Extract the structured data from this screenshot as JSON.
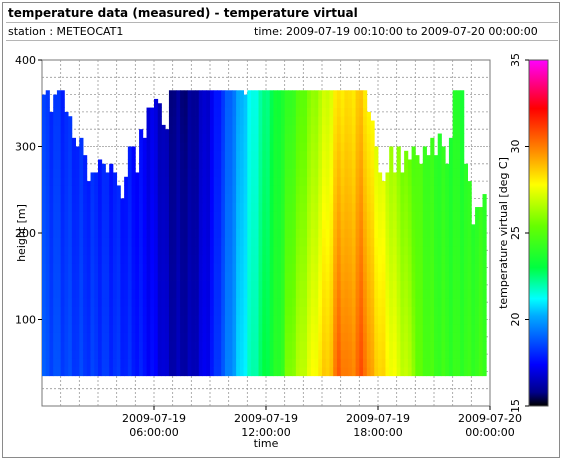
{
  "header": {
    "title": "temperature data (measured) - temperature virtual",
    "station": "station : METEOCAT1",
    "time_range": "time: 2009-07-19 00:10:00 to 2009-07-20 00:00:00"
  },
  "chart_data": {
    "type": "heatmap",
    "xlabel": "time",
    "ylabel": "height [m]",
    "colorbar_label": "temperature virtual [deg C]",
    "x_range_hours": [
      0,
      24
    ],
    "ylim": [
      0,
      400
    ],
    "colorbar_range": [
      15,
      35
    ],
    "y_ticks": [
      100,
      200,
      300,
      400
    ],
    "colorbar_ticks": [
      15,
      20,
      25,
      30,
      35
    ],
    "x_ticks": [
      {
        "hour": 6,
        "line1": "2009-07-19",
        "line2": "06:00:00"
      },
      {
        "hour": 12,
        "line1": "2009-07-19",
        "line2": "12:00:00"
      },
      {
        "hour": 18,
        "line1": "2009-07-19",
        "line2": "18:00:00"
      },
      {
        "hour": 24,
        "line1": "2009-07-20",
        "line2": "00:00:00"
      }
    ],
    "grid": true,
    "height_bottom_m": 35,
    "data_top_m": [
      [
        0.2,
        360
      ],
      [
        0.4,
        365
      ],
      [
        0.6,
        340
      ],
      [
        0.8,
        360
      ],
      [
        1.0,
        365
      ],
      [
        1.2,
        365
      ],
      [
        1.4,
        340
      ],
      [
        1.6,
        335
      ],
      [
        1.8,
        310
      ],
      [
        2.0,
        300
      ],
      [
        2.2,
        310
      ],
      [
        2.4,
        290
      ],
      [
        2.6,
        260
      ],
      [
        2.8,
        270
      ],
      [
        3.0,
        270
      ],
      [
        3.2,
        285
      ],
      [
        3.4,
        280
      ],
      [
        3.6,
        270
      ],
      [
        3.8,
        280
      ],
      [
        4.0,
        270
      ],
      [
        4.2,
        255
      ],
      [
        4.4,
        240
      ],
      [
        4.6,
        265
      ],
      [
        4.8,
        300
      ],
      [
        5.0,
        300
      ],
      [
        5.2,
        270
      ],
      [
        5.4,
        320
      ],
      [
        5.6,
        310
      ],
      [
        5.8,
        345
      ],
      [
        6.0,
        345
      ],
      [
        6.2,
        355
      ],
      [
        6.4,
        350
      ],
      [
        6.6,
        325
      ],
      [
        6.8,
        320
      ],
      [
        7.0,
        365
      ],
      [
        7.2,
        365
      ],
      [
        7.4,
        365
      ],
      [
        7.6,
        365
      ],
      [
        7.8,
        365
      ],
      [
        8.0,
        365
      ],
      [
        8.2,
        365
      ],
      [
        8.4,
        365
      ],
      [
        8.6,
        365
      ],
      [
        8.8,
        365
      ],
      [
        9.0,
        365
      ],
      [
        9.2,
        365
      ],
      [
        9.4,
        365
      ],
      [
        9.6,
        365
      ],
      [
        9.8,
        365
      ],
      [
        10.0,
        365
      ],
      [
        10.2,
        365
      ],
      [
        10.4,
        365
      ],
      [
        10.6,
        365
      ],
      [
        10.8,
        365
      ],
      [
        11.0,
        360
      ],
      [
        11.2,
        365
      ],
      [
        11.4,
        365
      ],
      [
        11.6,
        365
      ],
      [
        11.8,
        365
      ],
      [
        12.0,
        365
      ],
      [
        12.2,
        365
      ],
      [
        12.4,
        365
      ],
      [
        12.6,
        365
      ],
      [
        12.8,
        365
      ],
      [
        13.0,
        365
      ],
      [
        13.2,
        365
      ],
      [
        13.4,
        365
      ],
      [
        13.6,
        365
      ],
      [
        13.8,
        365
      ],
      [
        14.0,
        365
      ],
      [
        14.2,
        365
      ],
      [
        14.4,
        365
      ],
      [
        14.6,
        365
      ],
      [
        14.8,
        365
      ],
      [
        15.0,
        365
      ],
      [
        15.2,
        365
      ],
      [
        15.4,
        365
      ],
      [
        15.6,
        365
      ],
      [
        15.8,
        365
      ],
      [
        16.0,
        365
      ],
      [
        16.2,
        365
      ],
      [
        16.4,
        365
      ],
      [
        16.6,
        365
      ],
      [
        16.8,
        365
      ],
      [
        17.0,
        365
      ],
      [
        17.2,
        365
      ],
      [
        17.4,
        365
      ],
      [
        17.6,
        340
      ],
      [
        17.8,
        330
      ],
      [
        18.0,
        300
      ],
      [
        18.2,
        270
      ],
      [
        18.4,
        260
      ],
      [
        18.6,
        270
      ],
      [
        18.8,
        300
      ],
      [
        19.0,
        270
      ],
      [
        19.2,
        300
      ],
      [
        19.4,
        270
      ],
      [
        19.6,
        295
      ],
      [
        19.8,
        285
      ],
      [
        20.0,
        300
      ],
      [
        20.2,
        290
      ],
      [
        20.4,
        280
      ],
      [
        20.6,
        300
      ],
      [
        20.8,
        290
      ],
      [
        21.0,
        310
      ],
      [
        21.2,
        290
      ],
      [
        21.4,
        315
      ],
      [
        21.6,
        300
      ],
      [
        21.8,
        280
      ],
      [
        22.0,
        310
      ],
      [
        22.2,
        365
      ],
      [
        22.4,
        365
      ],
      [
        22.6,
        365
      ],
      [
        22.8,
        280
      ],
      [
        23.0,
        260
      ],
      [
        23.2,
        210
      ],
      [
        23.4,
        230
      ],
      [
        23.6,
        230
      ],
      [
        23.8,
        245
      ]
    ],
    "surface_temperature_by_hour": [
      [
        0,
        18.8
      ],
      [
        1,
        18.6
      ],
      [
        2,
        18.4
      ],
      [
        3,
        18.3
      ],
      [
        4,
        18.2
      ],
      [
        5,
        17.9
      ],
      [
        6,
        17.4
      ],
      [
        7,
        16.3
      ],
      [
        8,
        16.3
      ],
      [
        9,
        17.5
      ],
      [
        10,
        19.5
      ],
      [
        11,
        21.5
      ],
      [
        12,
        23.0
      ],
      [
        13,
        24.5
      ],
      [
        14,
        26.0
      ],
      [
        15,
        27.5
      ],
      [
        16,
        28.8
      ],
      [
        17,
        29.3
      ],
      [
        18,
        27.8
      ],
      [
        19,
        26.5
      ],
      [
        20,
        25.3
      ],
      [
        21,
        24.5
      ],
      [
        22,
        24.2
      ],
      [
        23,
        24.3
      ],
      [
        24,
        24.5
      ]
    ],
    "warm_anomalies": [
      {
        "hour": 15.9,
        "delta": 1.2
      },
      {
        "hour": 17.2,
        "delta": 1.0
      }
    ]
  }
}
